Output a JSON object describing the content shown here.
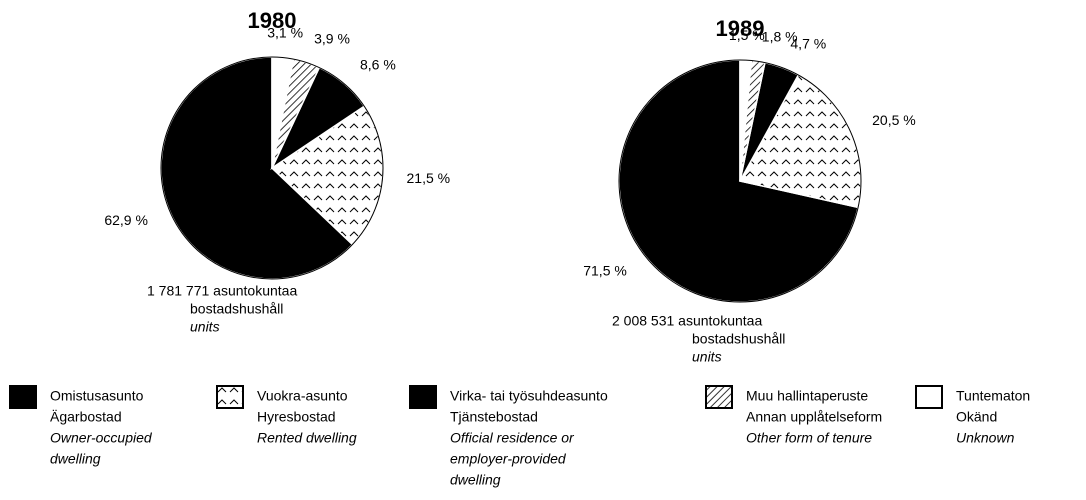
{
  "chart_data": [
    {
      "type": "pie",
      "title": "1980",
      "values": [
        62.9,
        21.5,
        8.6,
        3.9,
        3.1
      ],
      "value_labels": [
        "62,9 %",
        "21,5 %",
        "8,6 %",
        "3,9 %",
        "3,1 %"
      ],
      "note": {
        "fi": "1 781 771 asuntokuntaa",
        "sv": "bostadshushåll",
        "en": "units"
      }
    },
    {
      "type": "pie",
      "title": "1989",
      "values": [
        71.5,
        20.5,
        4.7,
        1.8,
        1.5
      ],
      "value_labels": [
        "71,5 %",
        "20,5 %",
        "4,7 %",
        "1,8 %",
        "1,5 %"
      ],
      "note": {
        "fi": "2 008 531 asuntokuntaa",
        "sv": "bostadshushåll",
        "en": "units"
      }
    }
  ],
  "legend": {
    "items": [
      {
        "fi": "Omistusasunto",
        "sv": "Ägarbostad",
        "en": [
          "Owner-occupied",
          "dwelling"
        ],
        "fill": "solid"
      },
      {
        "fi": "Vuokra-asunto",
        "sv": "Hyresbostad",
        "en": [
          "Rented dwelling"
        ],
        "fill": "chevron"
      },
      {
        "fi": "Virka- tai työsuhdeasunto",
        "sv": "Tjänstebostad",
        "en": [
          "Official residence or",
          "employer-provided",
          "dwelling"
        ],
        "fill": "solid"
      },
      {
        "fi": "Muu hallintaperuste",
        "sv": "Annan upplåtelseform",
        "en": [
          "Other form of tenure"
        ],
        "fill": "hatch"
      },
      {
        "fi": "Tuntematon",
        "sv": "Okänd",
        "en": [
          "Unknown"
        ],
        "fill": "empty"
      }
    ]
  }
}
